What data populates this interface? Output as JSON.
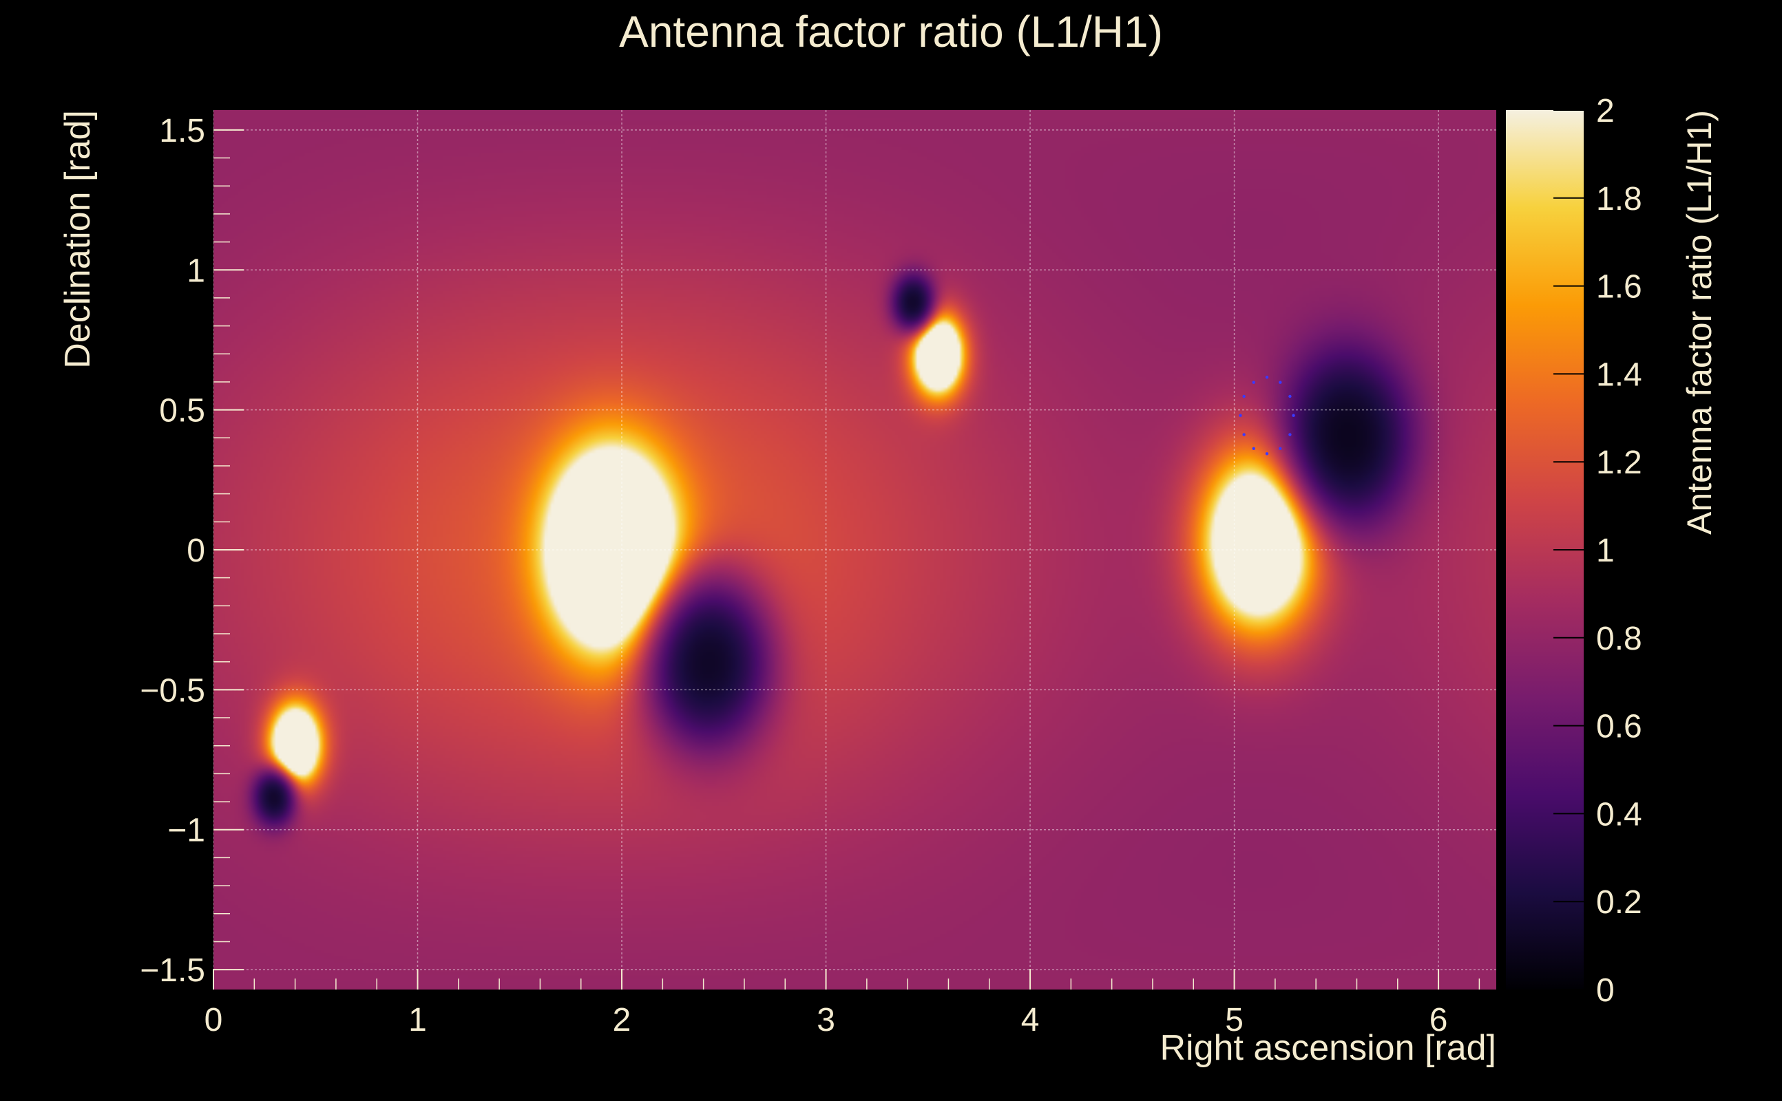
{
  "chart_data": {
    "type": "heatmap",
    "title": "Antenna factor ratio (L1/H1)",
    "xlabel": "Right ascension [rad]",
    "ylabel": "Declination [rad]",
    "zlabel": "Antenna factor ratio (L1/H1)",
    "xlim": [
      0,
      6.283
    ],
    "ylim": [
      -1.571,
      1.571
    ],
    "zlim": [
      0,
      2
    ],
    "xticks": [
      0,
      1,
      2,
      3,
      4,
      5,
      6
    ],
    "xtick_labels": [
      "0",
      "1",
      "2",
      "3",
      "4",
      "5",
      "6"
    ],
    "yticks": [
      -1.5,
      -1,
      -0.5,
      0,
      0.5,
      1,
      1.5
    ],
    "ytick_labels": [
      "−1.5",
      "−1",
      "−0.5",
      "0",
      "0.5",
      "1",
      "1.5"
    ],
    "zticks": [
      0,
      0.2,
      0.4,
      0.6,
      0.8,
      1,
      1.2,
      1.4,
      1.6,
      1.8,
      2
    ],
    "ztick_labels": [
      "0",
      "0.2",
      "0.4",
      "0.6",
      "0.8",
      "1",
      "1.2",
      "1.4",
      "1.6",
      "1.8",
      "2"
    ],
    "grid": true,
    "colormap": [
      "#000004",
      "#1b0c41",
      "#4a0c6b",
      "#781c6d",
      "#a52c60",
      "#cf4446",
      "#ed6925",
      "#fb9b06",
      "#f7d13d",
      "#f5f0e0"
    ],
    "features": [
      {
        "kind": "peak",
        "ra": 1.95,
        "dec": 0.0,
        "value": 2.0
      },
      {
        "kind": "peak",
        "ra": 5.12,
        "dec": 0.03,
        "value": 2.0
      },
      {
        "kind": "peak",
        "ra": 3.55,
        "dec": 0.7,
        "value": 2.0
      },
      {
        "kind": "peak",
        "ra": 0.4,
        "dec": -0.7,
        "value": 2.0
      },
      {
        "kind": "null",
        "ra": 2.42,
        "dec": -0.4,
        "value": 0.0
      },
      {
        "kind": "null",
        "ra": 5.55,
        "dec": 0.4,
        "value": 0.0
      },
      {
        "kind": "null",
        "ra": 3.43,
        "dec": 0.88,
        "value": 0.0
      },
      {
        "kind": "null",
        "ra": 0.3,
        "dec": -0.88,
        "value": 0.0
      }
    ],
    "marker_circle": {
      "ra": 5.16,
      "dec": 0.48,
      "radius": 0.13,
      "color": "#3a3aff"
    }
  }
}
